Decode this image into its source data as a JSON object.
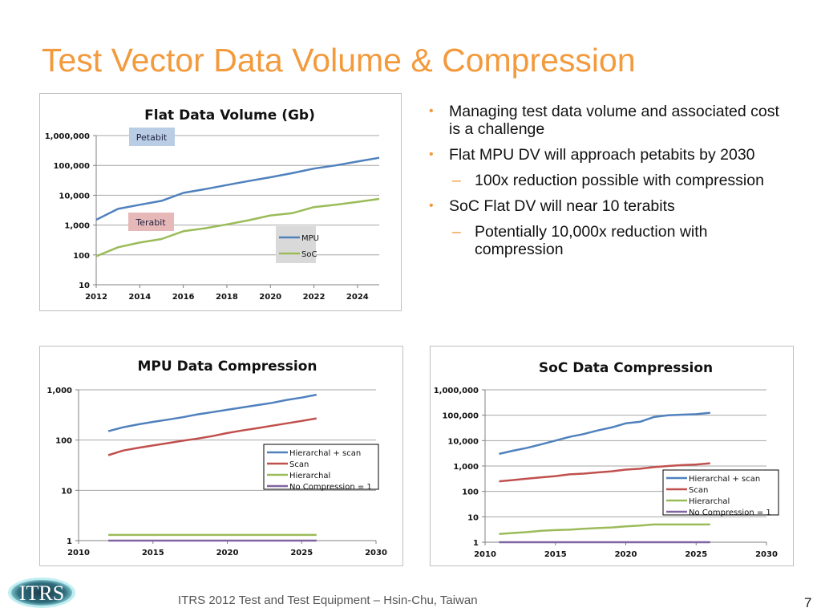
{
  "slide": {
    "title": "Test Vector Data Volume & Compression",
    "footer": "ITRS 2012 Test and Test Equipment –  Hsin-Chu, Taiwan",
    "page_number": "7",
    "logo_text": "ITRS",
    "accent_color": "#F39A3D"
  },
  "bullets": [
    {
      "level": 1,
      "marker": "•",
      "text": "Managing test data volume and associated cost is a challenge"
    },
    {
      "level": 1,
      "marker": "•",
      "text": "Flat MPU DV will approach petabits by 2030"
    },
    {
      "level": 2,
      "marker": "–",
      "text": "100x reduction possible with compression"
    },
    {
      "level": 1,
      "marker": "•",
      "text": "SoC Flat DV will near 10 terabits"
    },
    {
      "level": 2,
      "marker": "–",
      "text": "Potentially 10,000x reduction with compression"
    }
  ],
  "chart_data": [
    {
      "id": "flat",
      "type": "line",
      "title": "Flat Data Volume (Gb)",
      "xlabel": "",
      "ylabel": "",
      "yscale": "log",
      "ylim": [
        10,
        1000000
      ],
      "xlim": [
        2012,
        2025
      ],
      "xticks": [
        "2012",
        "2014",
        "2016",
        "2018",
        "2020",
        "2022",
        "2024"
      ],
      "yticks": [
        "10",
        "100",
        "1,000",
        "10,000",
        "100,000",
        "1,000,000"
      ],
      "grid": true,
      "legend": "bottom-right",
      "annotations": [
        {
          "text": "Petabit",
          "color": "#B9CDE5"
        },
        {
          "text": "Terabit",
          "color": "#E6B9B8"
        }
      ],
      "x": [
        2012,
        2013,
        2014,
        2015,
        2016,
        2017,
        2018,
        2019,
        2020,
        2021,
        2022,
        2023,
        2024,
        2025
      ],
      "series": [
        {
          "name": "MPU",
          "color": "#4F81BD",
          "values": [
            1500,
            3500,
            4800,
            6500,
            12000,
            16000,
            22000,
            30000,
            40000,
            55000,
            78000,
            100000,
            135000,
            180000
          ]
        },
        {
          "name": "SoC",
          "color": "#9BBB59",
          "values": [
            90,
            180,
            260,
            340,
            620,
            780,
            1050,
            1450,
            2100,
            2500,
            4000,
            4800,
            6000,
            7500
          ]
        }
      ]
    },
    {
      "id": "mpu",
      "type": "line",
      "title": "MPU Data Compression",
      "xlabel": "",
      "ylabel": "",
      "yscale": "log",
      "ylim": [
        1,
        1000
      ],
      "xlim": [
        2010,
        2030
      ],
      "xticks": [
        "2010",
        "2015",
        "2020",
        "2025",
        "2030"
      ],
      "yticks": [
        "1",
        "10",
        "100",
        "1,000"
      ],
      "grid": true,
      "legend": "right",
      "x": [
        2012,
        2013,
        2014,
        2015,
        2016,
        2017,
        2018,
        2019,
        2020,
        2021,
        2022,
        2023,
        2024,
        2025,
        2026
      ],
      "series": [
        {
          "name": "Hierarchal + scan",
          "color": "#4F81BD",
          "values": [
            150,
            180,
            205,
            230,
            255,
            285,
            325,
            360,
            400,
            445,
            495,
            550,
            630,
            700,
            800
          ]
        },
        {
          "name": "Scan",
          "color": "#C0504D",
          "values": [
            50,
            62,
            70,
            78,
            87,
            97,
            107,
            120,
            138,
            155,
            172,
            193,
            215,
            240,
            270
          ]
        },
        {
          "name": "Hierarchal",
          "color": "#9BBB59",
          "values": [
            1.3,
            1.3,
            1.3,
            1.3,
            1.3,
            1.3,
            1.3,
            1.3,
            1.3,
            1.3,
            1.3,
            1.3,
            1.3,
            1.3,
            1.3
          ]
        },
        {
          "name": "No Compression = 1",
          "color": "#8064A2",
          "values": [
            1,
            1,
            1,
            1,
            1,
            1,
            1,
            1,
            1,
            1,
            1,
            1,
            1,
            1,
            1
          ]
        }
      ]
    },
    {
      "id": "soc",
      "type": "line",
      "title": "SoC Data Compression",
      "xlabel": "",
      "ylabel": "",
      "yscale": "log",
      "ylim": [
        1,
        1000000
      ],
      "xlim": [
        2010,
        2030
      ],
      "xticks": [
        "2010",
        "2015",
        "2020",
        "2025",
        "2030"
      ],
      "yticks": [
        "1",
        "10",
        "100",
        "1,000",
        "10,000",
        "100,000",
        "1,000,000"
      ],
      "grid": true,
      "legend": "right",
      "x": [
        2011,
        2012,
        2013,
        2014,
        2015,
        2016,
        2017,
        2018,
        2019,
        2020,
        2021,
        2022,
        2023,
        2024,
        2025,
        2026
      ],
      "series": [
        {
          "name": "Hierarchal + scan",
          "color": "#4F81BD",
          "values": [
            3000,
            4000,
            5200,
            7200,
            10000,
            14000,
            18000,
            25000,
            33000,
            48000,
            55000,
            85000,
            100000,
            105000,
            110000,
            125000
          ]
        },
        {
          "name": "Scan",
          "color": "#C0504D",
          "values": [
            250,
            280,
            320,
            360,
            400,
            470,
            500,
            560,
            620,
            720,
            780,
            900,
            1000,
            1080,
            1150,
            1280
          ]
        },
        {
          "name": "Hierarchal",
          "color": "#9BBB59",
          "values": [
            2.1,
            2.3,
            2.5,
            2.8,
            3.0,
            3.1,
            3.4,
            3.6,
            3.8,
            4.2,
            4.5,
            5.0,
            5.0,
            5.0,
            5.0,
            5.0
          ]
        },
        {
          "name": "No Compression = 1",
          "color": "#8064A2",
          "values": [
            1,
            1,
            1,
            1,
            1,
            1,
            1,
            1,
            1,
            1,
            1,
            1,
            1,
            1,
            1,
            1
          ]
        }
      ]
    }
  ]
}
